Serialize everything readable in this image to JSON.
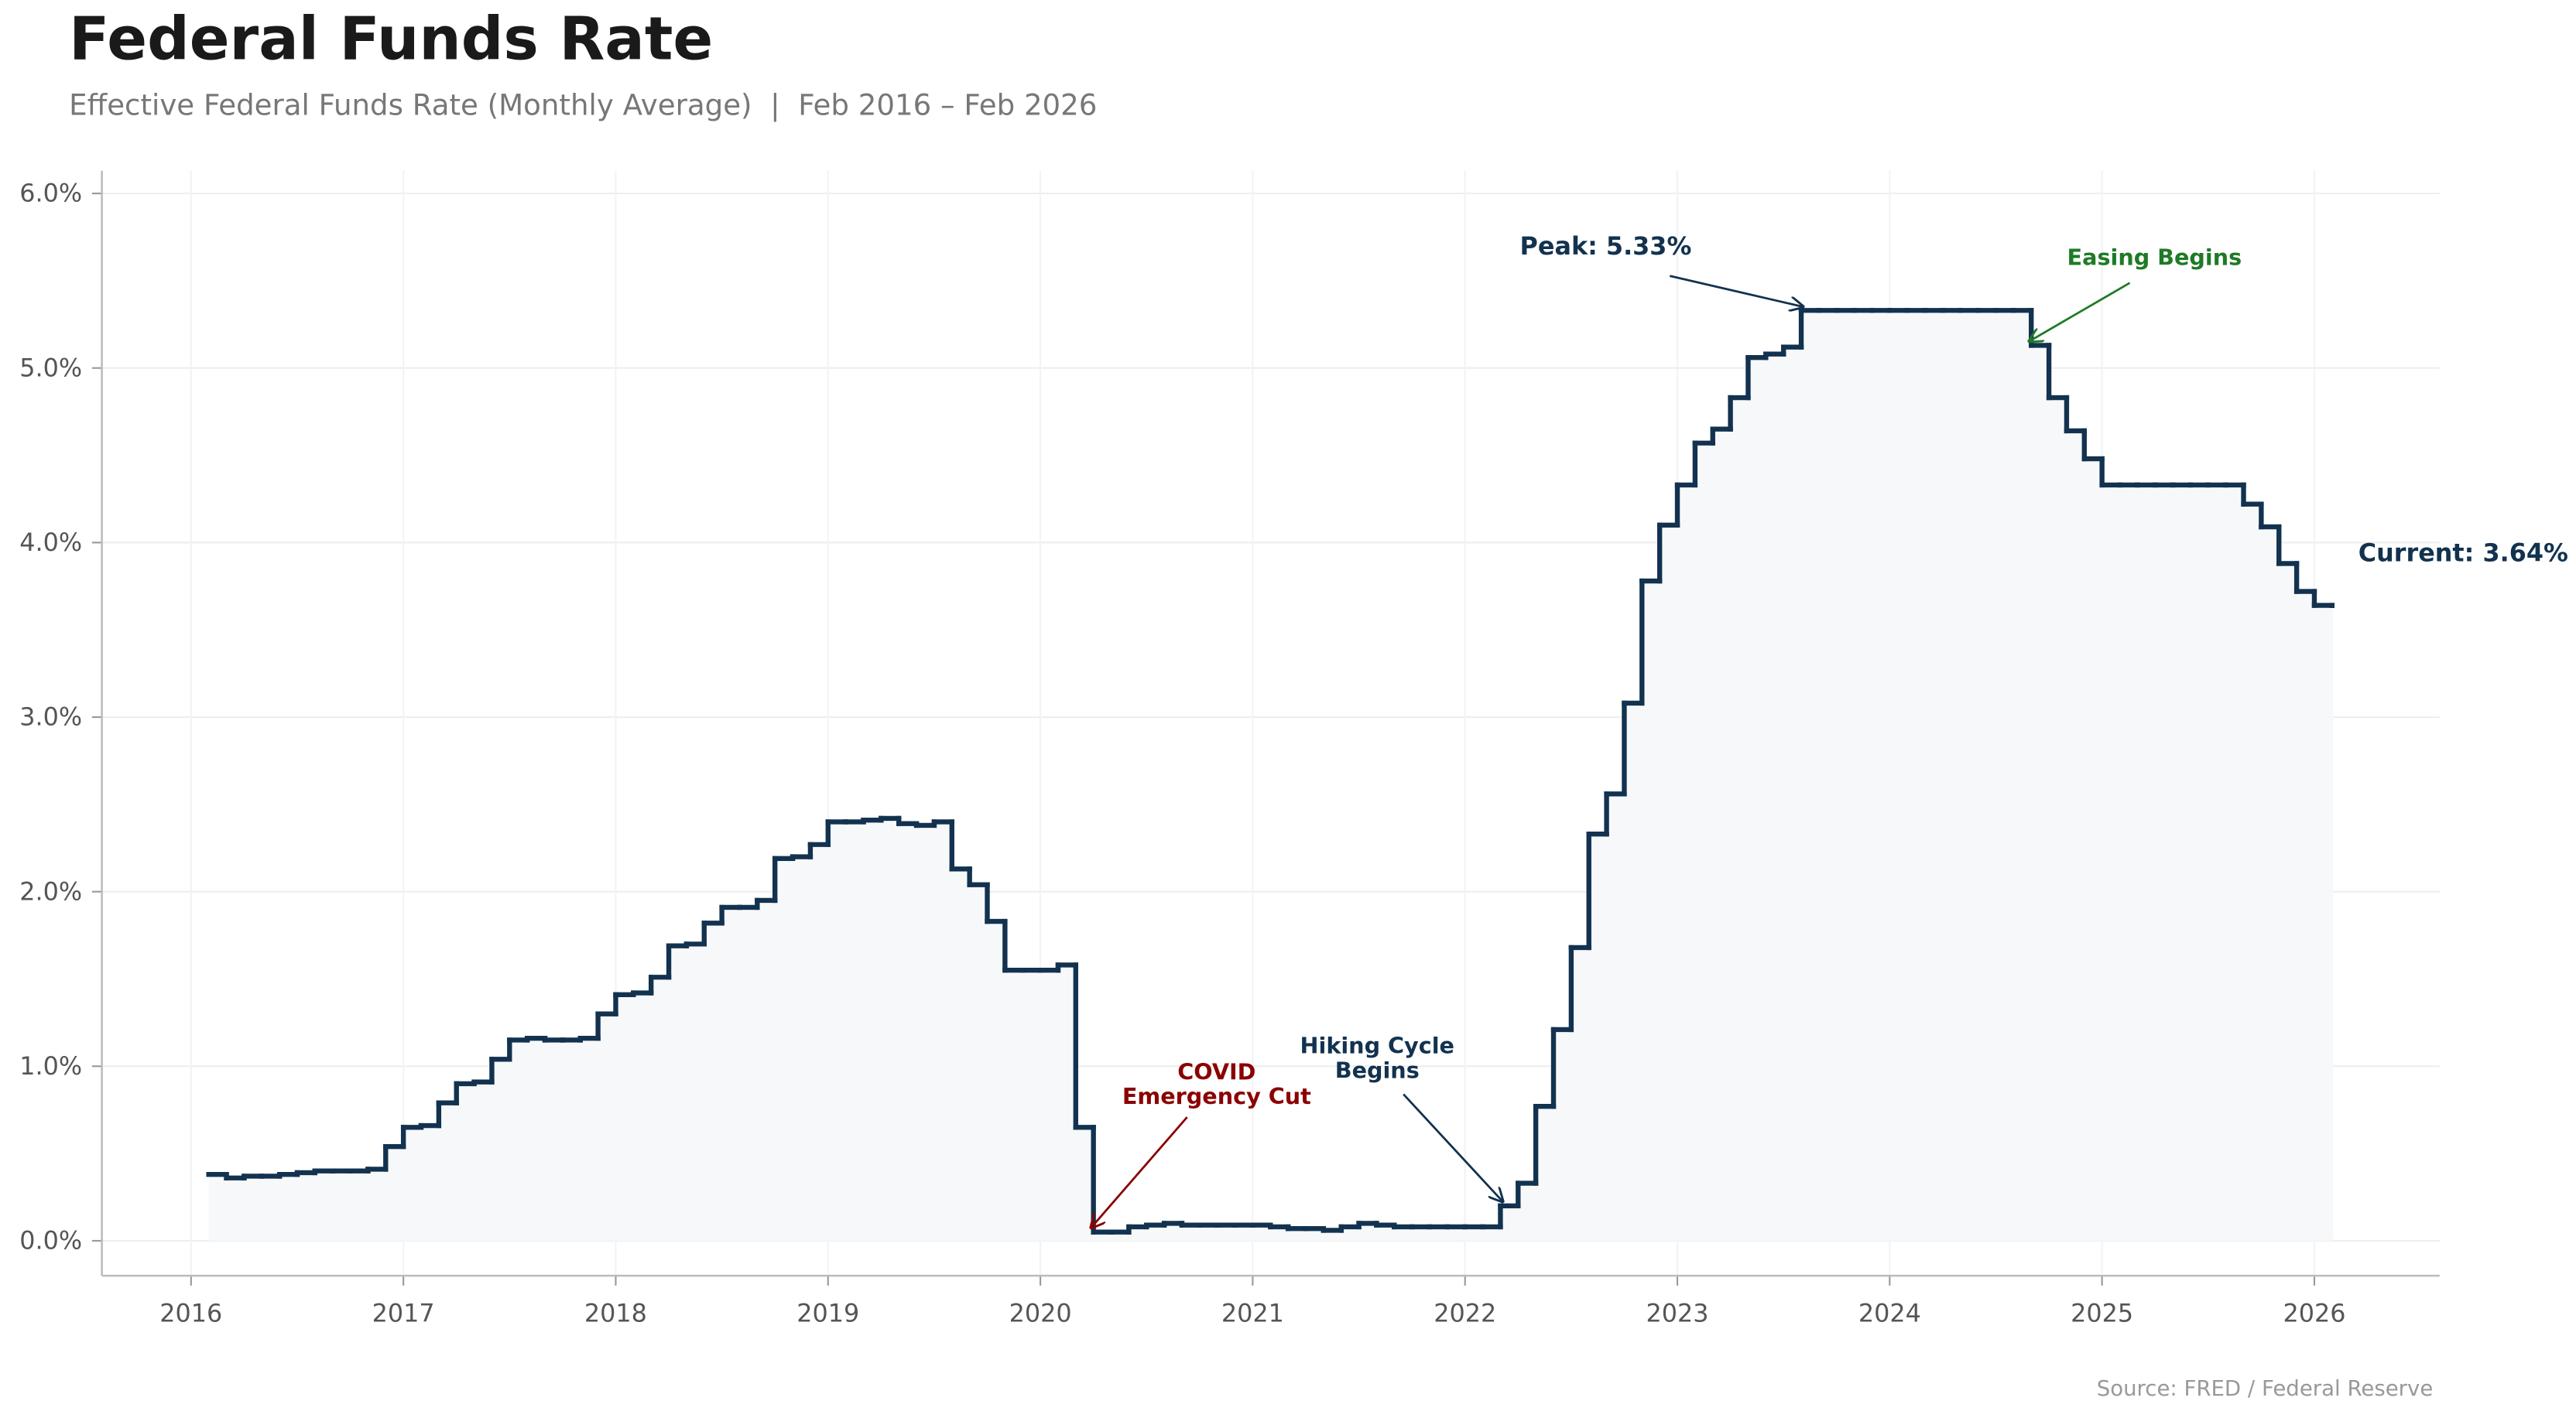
{
  "chart_data": {
    "type": "step",
    "title": "Federal Funds Rate",
    "subtitle": "Effective Federal Funds Rate (Monthly Average)  |  Feb 2016 – Feb 2026",
    "source": "Source: FRED / Federal Reserve",
    "x": [
      "2016-02",
      "2016-03",
      "2016-04",
      "2016-05",
      "2016-06",
      "2016-07",
      "2016-08",
      "2016-09",
      "2016-10",
      "2016-11",
      "2016-12",
      "2017-01",
      "2017-02",
      "2017-03",
      "2017-04",
      "2017-05",
      "2017-06",
      "2017-07",
      "2017-08",
      "2017-09",
      "2017-10",
      "2017-11",
      "2017-12",
      "2018-01",
      "2018-02",
      "2018-03",
      "2018-04",
      "2018-05",
      "2018-06",
      "2018-07",
      "2018-08",
      "2018-09",
      "2018-10",
      "2018-11",
      "2018-12",
      "2019-01",
      "2019-02",
      "2019-03",
      "2019-04",
      "2019-05",
      "2019-06",
      "2019-07",
      "2019-08",
      "2019-09",
      "2019-10",
      "2019-11",
      "2019-12",
      "2020-01",
      "2020-02",
      "2020-03",
      "2020-04",
      "2020-05",
      "2020-06",
      "2020-07",
      "2020-08",
      "2020-09",
      "2020-10",
      "2020-11",
      "2020-12",
      "2021-01",
      "2021-02",
      "2021-03",
      "2021-04",
      "2021-05",
      "2021-06",
      "2021-07",
      "2021-08",
      "2021-09",
      "2021-10",
      "2021-11",
      "2021-12",
      "2022-01",
      "2022-02",
      "2022-03",
      "2022-04",
      "2022-05",
      "2022-06",
      "2022-07",
      "2022-08",
      "2022-09",
      "2022-10",
      "2022-11",
      "2022-12",
      "2023-01",
      "2023-02",
      "2023-03",
      "2023-04",
      "2023-05",
      "2023-06",
      "2023-07",
      "2023-08",
      "2023-09",
      "2023-10",
      "2023-11",
      "2023-12",
      "2024-01",
      "2024-02",
      "2024-03",
      "2024-04",
      "2024-05",
      "2024-06",
      "2024-07",
      "2024-08",
      "2024-09",
      "2024-10",
      "2024-11",
      "2024-12",
      "2025-01",
      "2025-02",
      "2025-03",
      "2025-04",
      "2025-05",
      "2025-06",
      "2025-07",
      "2025-08",
      "2025-09",
      "2025-10",
      "2025-11",
      "2025-12",
      "2026-01",
      "2026-02"
    ],
    "values": [
      0.38,
      0.36,
      0.37,
      0.37,
      0.38,
      0.39,
      0.4,
      0.4,
      0.4,
      0.41,
      0.54,
      0.65,
      0.66,
      0.79,
      0.9,
      0.91,
      1.04,
      1.15,
      1.16,
      1.15,
      1.15,
      1.16,
      1.3,
      1.41,
      1.42,
      1.51,
      1.69,
      1.7,
      1.82,
      1.91,
      1.91,
      1.95,
      2.19,
      2.2,
      2.27,
      2.4,
      2.4,
      2.41,
      2.42,
      2.39,
      2.38,
      2.4,
      2.13,
      2.04,
      1.83,
      1.55,
      1.55,
      1.55,
      1.58,
      0.65,
      0.05,
      0.05,
      0.08,
      0.09,
      0.1,
      0.09,
      0.09,
      0.09,
      0.09,
      0.09,
      0.08,
      0.07,
      0.07,
      0.06,
      0.08,
      0.1,
      0.09,
      0.08,
      0.08,
      0.08,
      0.08,
      0.08,
      0.08,
      0.2,
      0.33,
      0.77,
      1.21,
      1.68,
      2.33,
      2.56,
      3.08,
      3.78,
      4.1,
      4.33,
      4.57,
      4.65,
      4.83,
      5.06,
      5.08,
      5.12,
      5.33,
      5.33,
      5.33,
      5.33,
      5.33,
      5.33,
      5.33,
      5.33,
      5.33,
      5.33,
      5.33,
      5.33,
      5.33,
      5.13,
      4.83,
      4.64,
      4.48,
      4.33,
      4.33,
      4.33,
      4.33,
      4.33,
      4.33,
      4.33,
      4.33,
      4.22,
      4.09,
      3.88,
      3.72,
      3.64,
      3.64
    ],
    "color": "#12324f",
    "fill_color": "#f6f8fa",
    "xlim": [
      2015.58,
      2026.59
    ],
    "xticks": [
      2016,
      2017,
      2018,
      2019,
      2020,
      2021,
      2022,
      2023,
      2024,
      2025,
      2026
    ],
    "ylim": [
      -0.2,
      6.13
    ],
    "yticks": [
      {
        "value": 0,
        "label": "0.0%"
      },
      {
        "value": 1,
        "label": "1.0%"
      },
      {
        "value": 2,
        "label": "2.0%"
      },
      {
        "value": 3,
        "label": "3.0%"
      },
      {
        "value": 4,
        "label": "4.0%"
      },
      {
        "value": 5,
        "label": "5.0%"
      },
      {
        "value": 6,
        "label": "6.0%"
      }
    ],
    "grid": true,
    "annotations": [
      {
        "text": [
          "Peak: 5.33%"
        ],
        "x": "2023-08",
        "y": 5.33,
        "color": "#12324f"
      },
      {
        "text": [
          "Easing Begins"
        ],
        "x": "2024-09",
        "y": 5.13,
        "color": "#1e7a26"
      },
      {
        "text": [
          "COVID",
          "Emergency Cut"
        ],
        "x": "2020-04",
        "y": 0.05,
        "color": "#8b0000"
      },
      {
        "text": [
          "Hiking Cycle",
          "Begins"
        ],
        "x": "2022-03",
        "y": 0.2,
        "color": "#12324f"
      },
      {
        "text": [
          "Current: 3.64%"
        ],
        "x": "2026-02",
        "y": 3.64,
        "color": "#12324f"
      }
    ]
  }
}
